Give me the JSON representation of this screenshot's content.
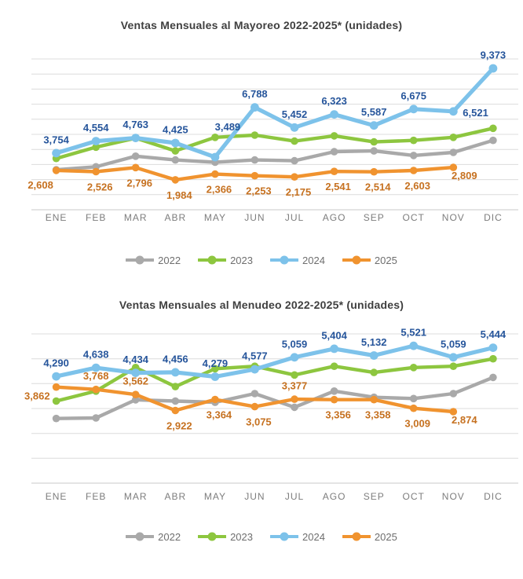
{
  "chart_data": [
    {
      "type": "line",
      "title": "Ventas Mensuales al Mayoreo 2022-2025* (unidades)",
      "categories": [
        "ENE",
        "FEB",
        "MAR",
        "ABR",
        "MAY",
        "JUN",
        "JUL",
        "AGO",
        "SEP",
        "OCT",
        "NOV",
        "DIC"
      ],
      "ylim": [
        0,
        10000
      ],
      "grid_step": 1000,
      "grid": true,
      "legend_position": "bottom",
      "colors": {
        "grid": "#dcdcdc",
        "axis": "#c9c9c9",
        "title": "#3f3f3f",
        "month_labels": "#7d7d7d"
      },
      "series": [
        {
          "name": "2022",
          "color": "#a9a9a9",
          "values": [
            2650,
            2850,
            3550,
            3300,
            3150,
            3300,
            3250,
            3850,
            3900,
            3600,
            3800,
            4600
          ]
        },
        {
          "name": "2023",
          "color": "#8dc63f",
          "values": [
            3400,
            4150,
            4750,
            3900,
            4800,
            4950,
            4550,
            4900,
            4500,
            4600,
            4800,
            5400
          ]
        },
        {
          "name": "2024",
          "color": "#7dc2ea",
          "values": [
            3754,
            4554,
            4763,
            4425,
            3489,
            6788,
            5452,
            6323,
            5587,
            6675,
            6521,
            9373
          ],
          "labels": {
            "color": "#26559b",
            "placements": [
              "above",
              "above",
              "above",
              "above",
              "above-far",
              "above",
              "above",
              "above",
              "above",
              "above",
              "right",
              "above"
            ]
          }
        },
        {
          "name": "2025",
          "color": "#f0932f",
          "values": [
            2608,
            2526,
            2796,
            1984,
            2366,
            2253,
            2175,
            2541,
            2514,
            2603,
            2809
          ],
          "labels": {
            "color": "#c67120",
            "placements": [
              "below-left",
              "below",
              "below",
              "below",
              "below",
              "below",
              "below",
              "below",
              "below",
              "below",
              "below-right"
            ]
          }
        }
      ]
    },
    {
      "type": "line",
      "title": "Ventas Mensuales al Menudeo 2022-2025* (unidades)",
      "categories": [
        "ENE",
        "FEB",
        "MAR",
        "ABR",
        "MAY",
        "JUN",
        "JUL",
        "AGO",
        "SEP",
        "OCT",
        "NOV",
        "DIC"
      ],
      "ylim": [
        0,
        6000
      ],
      "grid_step": 1000,
      "grid": true,
      "legend_position": "bottom",
      "colors": {
        "grid": "#dcdcdc",
        "axis": "#c9c9c9",
        "title": "#3f3f3f",
        "month_labels": "#7d7d7d"
      },
      "series": [
        {
          "name": "2022",
          "color": "#a9a9a9",
          "values": [
            2600,
            2620,
            3350,
            3300,
            3250,
            3600,
            3050,
            3700,
            3450,
            3400,
            3600,
            4250
          ]
        },
        {
          "name": "2023",
          "color": "#8dc63f",
          "values": [
            3300,
            3700,
            4650,
            3880,
            4600,
            4700,
            4350,
            4700,
            4450,
            4650,
            4700,
            5000
          ]
        },
        {
          "name": "2024",
          "color": "#7dc2ea",
          "values": [
            4290,
            4638,
            4434,
            4456,
            4279,
            4577,
            5059,
            5404,
            5132,
            5521,
            5059,
            5444
          ],
          "labels": {
            "color": "#26559b",
            "placements": [
              "above",
              "above",
              "above",
              "above",
              "above",
              "above",
              "above",
              "above",
              "above",
              "above",
              "above",
              "above"
            ]
          }
        },
        {
          "name": "2025",
          "color": "#f0932f",
          "values": [
            3862,
            3768,
            3562,
            2922,
            3364,
            3075,
            3377,
            3356,
            3358,
            3009,
            2874
          ],
          "labels": {
            "color": "#c67120",
            "placements": [
              "left",
              "above",
              "above",
              "below",
              "below",
              "below",
              "above",
              "below",
              "below",
              "below",
              "below-right"
            ]
          }
        }
      ]
    }
  ]
}
